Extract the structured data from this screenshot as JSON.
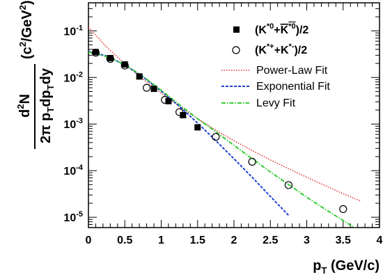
{
  "chart_data": {
    "type": "scatter",
    "x_axis": {
      "label_main": "p",
      "label_sub": "T",
      "label_units": " (GeV/c)",
      "range": [
        0,
        4
      ],
      "ticks": [
        0,
        0.5,
        1,
        1.5,
        2,
        2.5,
        3,
        3.5,
        4
      ],
      "tick_labels": [
        "0",
        "0.5",
        "1",
        "1.5",
        "2",
        "2.5",
        "3",
        "3.5",
        "4"
      ]
    },
    "y_axis": {
      "scale": "log",
      "range": [
        6e-06,
        0.4
      ],
      "ticks": [
        1e-05,
        0.0001,
        0.001,
        0.01,
        0.1
      ],
      "tick_mantissa": "10",
      "tick_exponents": [
        "-5",
        "-4",
        "-3",
        "-2",
        "-1"
      ],
      "label_numerator_main": "d",
      "label_numerator_sup": "2",
      "label_numerator_end": "N",
      "label_denominator": "2π p",
      "label_denominator_sub1": "T",
      "label_denominator_mid": "dp",
      "label_denominator_sub2": "T",
      "label_denominator_end": "dy",
      "label_units_start": "(c",
      "label_units_sup1": "2",
      "label_units_mid": "/GeV",
      "label_units_sup2": "2",
      "label_units_end": ")"
    },
    "series": [
      {
        "name": "(K*0+K̄*0)/2",
        "marker": "filled-square",
        "color": "#000000",
        "x": [
          0.1,
          0.3,
          0.5,
          0.7,
          0.9,
          1.1,
          1.3,
          1.5
        ],
        "y": [
          0.035,
          0.026,
          0.019,
          0.0105,
          0.0057,
          0.0031,
          0.00155,
          0.00085
        ]
      },
      {
        "name": "(K*++K*-)/2",
        "marker": "open-circle",
        "color": "#000000",
        "x": [
          0.1,
          0.3,
          0.5,
          0.8,
          1.05,
          1.25,
          1.75,
          2.25,
          2.75,
          3.5
        ],
        "y": [
          0.034,
          0.025,
          0.018,
          0.006,
          0.0033,
          0.0018,
          0.00053,
          0.000155,
          4.9e-05,
          1.5e-05
        ]
      },
      {
        "name": "Power-Law Fit",
        "style": "dotted",
        "color": "#e03030",
        "x": [
          0,
          0.25,
          0.5,
          0.75,
          1.0,
          1.25,
          1.5,
          1.75,
          2.0,
          2.25,
          2.5,
          2.75,
          3.0,
          3.25,
          3.5,
          3.75
        ],
        "y": [
          0.12,
          0.045,
          0.0195,
          0.0092,
          0.0046,
          0.0024,
          0.0013,
          0.00074,
          0.00044,
          0.00027,
          0.00017,
          0.00011,
          7.2e-05,
          4.8e-05,
          3.2e-05,
          2.2e-05
        ]
      },
      {
        "name": "Exponential Fit",
        "style": "dashed",
        "color": "#1f3fd6",
        "x": [
          0,
          0.25,
          0.5,
          0.75,
          1.0,
          1.25,
          1.5,
          1.75,
          2.0,
          2.25,
          2.5,
          2.75
        ],
        "y": [
          0.036,
          0.029,
          0.0185,
          0.0102,
          0.0051,
          0.0024,
          0.00105,
          0.00044,
          0.00018,
          7.2e-05,
          2.8e-05,
          1.1e-05
        ]
      },
      {
        "name": "Levy Fit",
        "style": "dash-dot",
        "color": "#33cc33",
        "x": [
          0,
          0.25,
          0.5,
          0.75,
          1.0,
          1.25,
          1.5,
          1.75,
          2.0,
          2.25,
          2.5,
          2.75,
          3.0,
          3.25,
          3.5,
          3.75
        ],
        "y": [
          0.035,
          0.028,
          0.019,
          0.0105,
          0.0053,
          0.0026,
          0.0013,
          0.00068,
          0.00035,
          0.00018,
          9.4e-05,
          5e-05,
          2.7e-05,
          1.5e-05,
          8.5e-06,
          4.8e-06
        ]
      }
    ],
    "legend": {
      "placement": "top-right",
      "entries": [
        {
          "main": "(K",
          "sup": "*0",
          "mid": "+",
          "bar": "K",
          "bar_sup": "*0",
          "end": ")/2"
        },
        {
          "main": "(K",
          "sup": "*+",
          "mid": "+K",
          "sup2": "*-",
          "end": ")/2"
        },
        {
          "label": "Power-Law Fit"
        },
        {
          "label": "Exponential Fit"
        },
        {
          "label": "Levy Fit"
        }
      ]
    }
  }
}
